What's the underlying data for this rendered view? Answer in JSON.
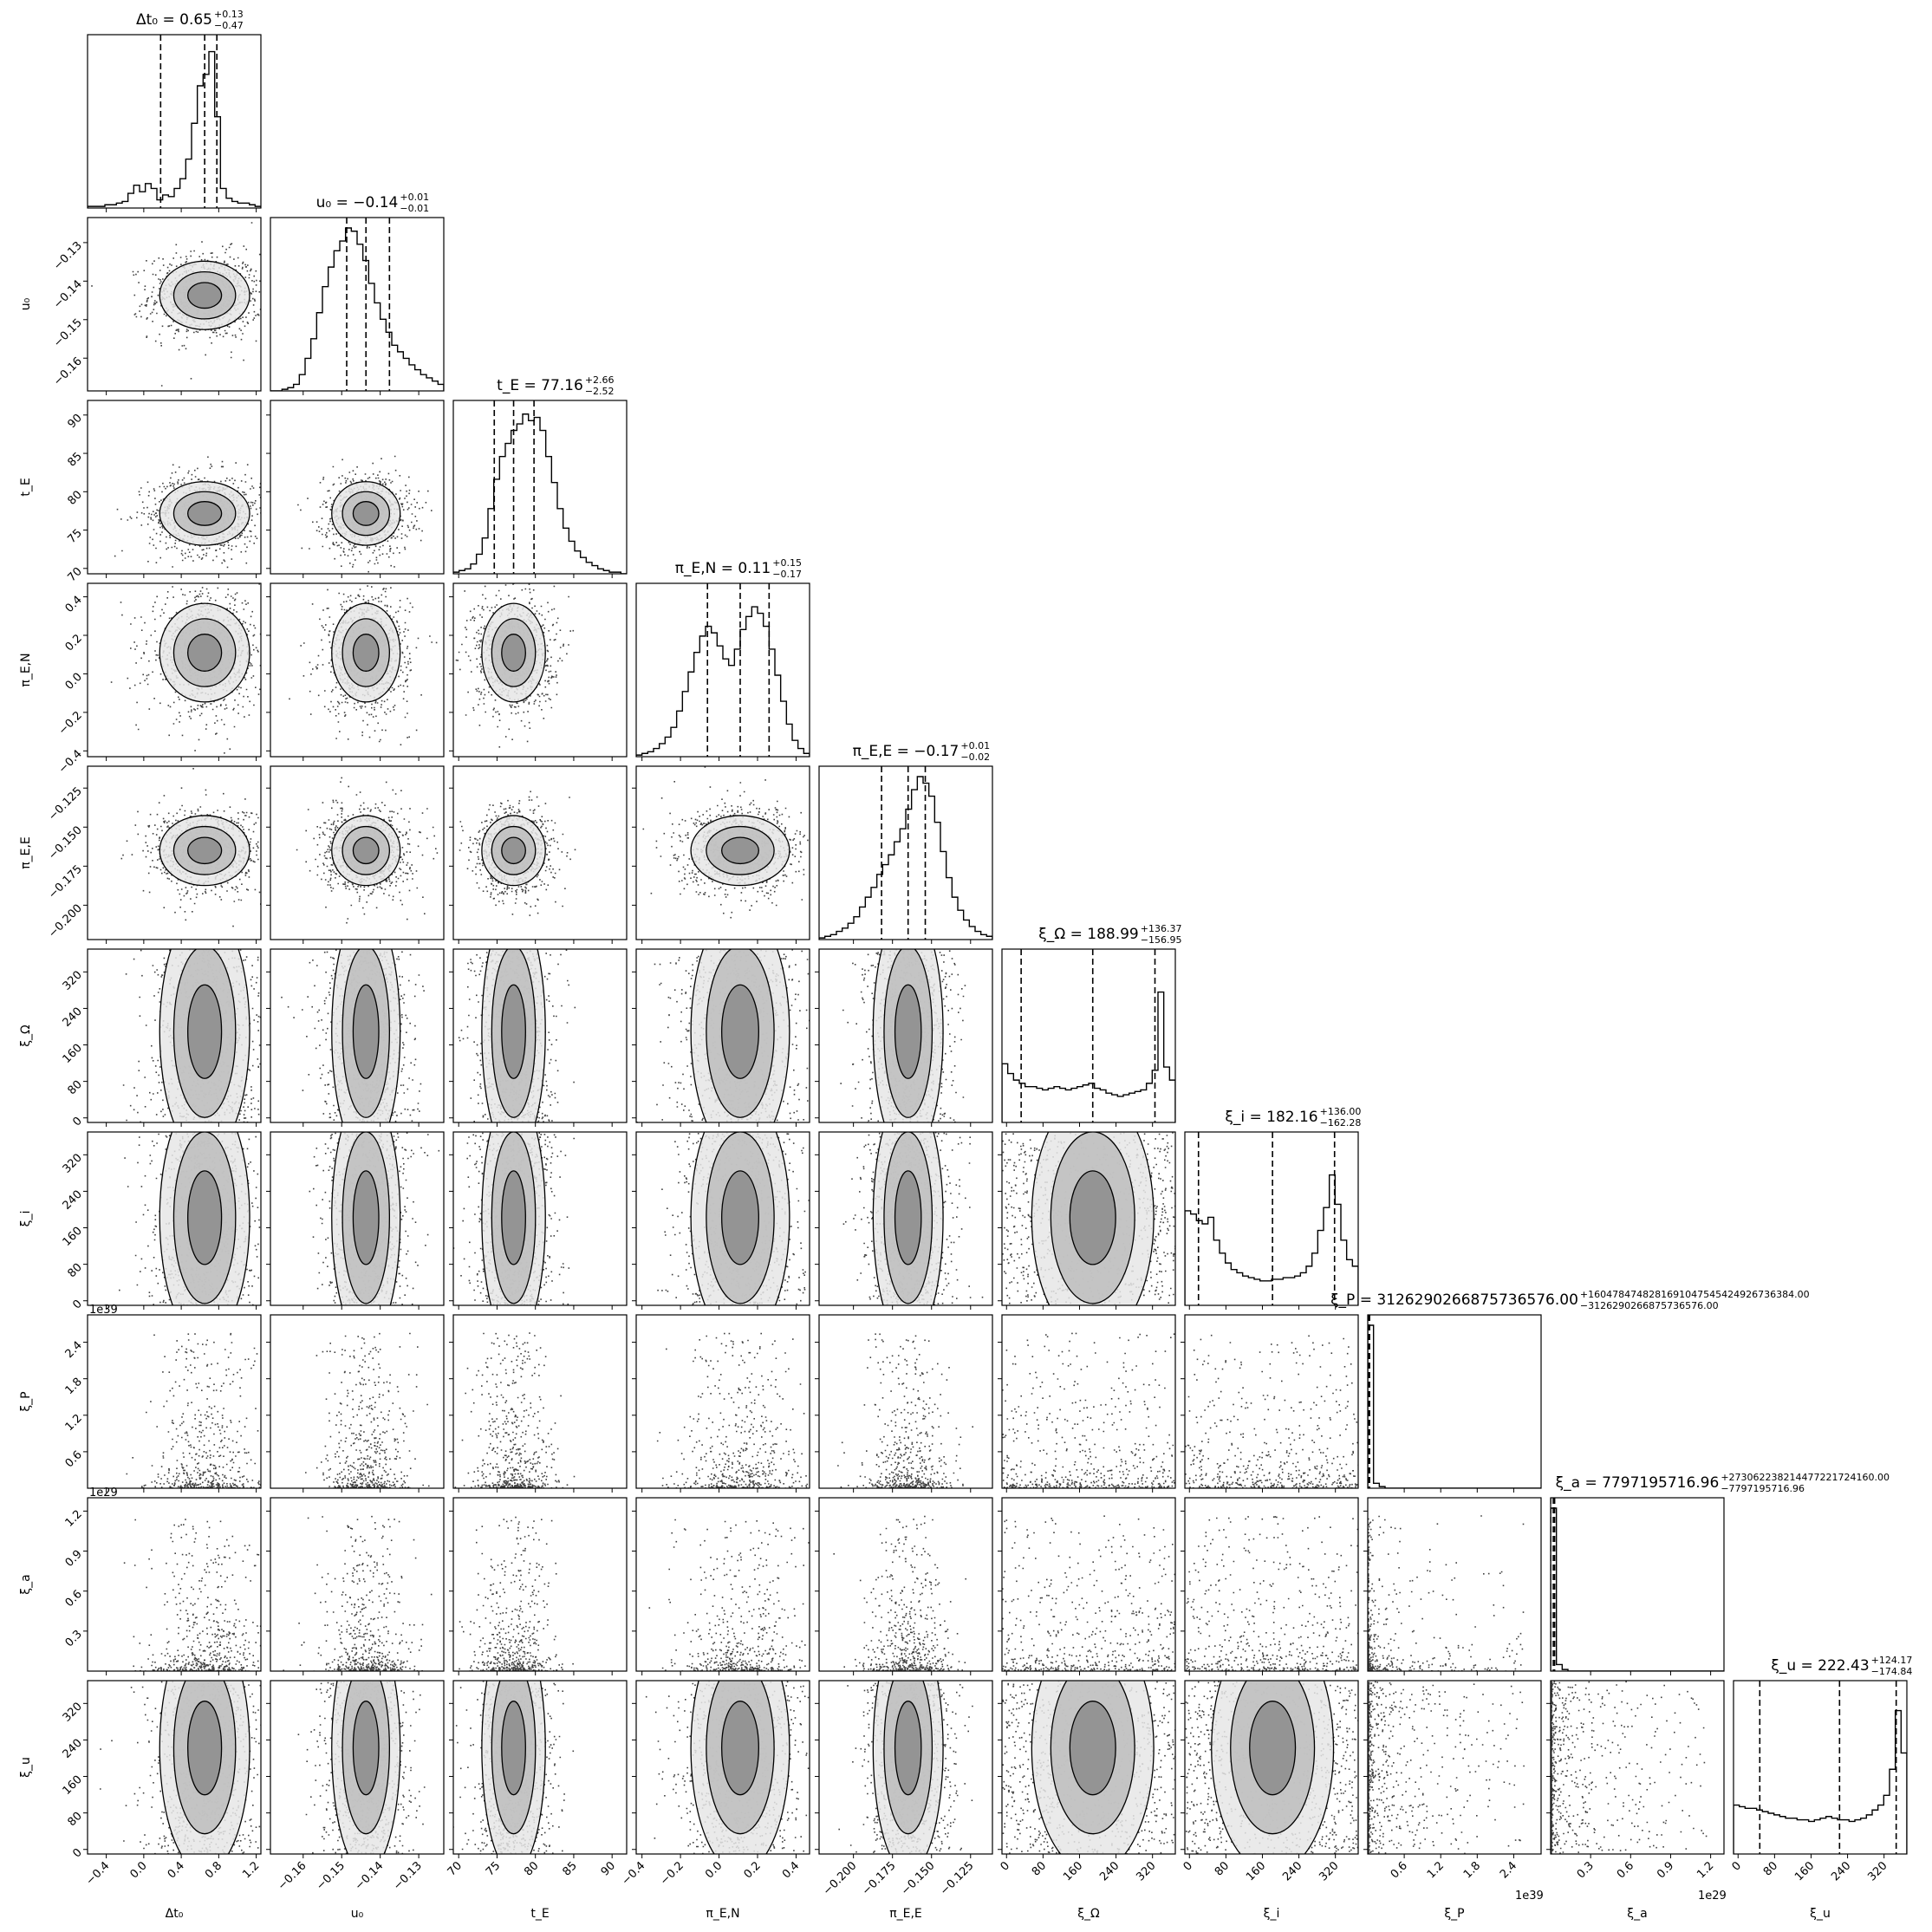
{
  "chart_data": {
    "type": "corner",
    "params": [
      {
        "label": "Δt₀",
        "ticks": [
          "−0.4",
          "0.0",
          "0.4",
          "0.8",
          "1.2"
        ],
        "tickvals": [
          -0.4,
          0.0,
          0.4,
          0.8,
          1.2
        ],
        "range": [
          -0.6,
          1.25
        ],
        "title": "Δt₀ = 0.65",
        "sup": "+0.13",
        "sub": "−0.47",
        "median": 0.65,
        "q16": 0.18,
        "q84": 0.78
      },
      {
        "label": "u₀",
        "ticks": [
          "−0.16",
          "−0.15",
          "−0.14",
          "−0.13"
        ],
        "tickvals": [
          -0.16,
          -0.15,
          -0.14,
          -0.13
        ],
        "range": [
          -0.1685,
          -0.1235
        ],
        "title": "u₀ = −0.14",
        "sup": "+0.01",
        "sub": "−0.01",
        "median": -0.1437,
        "q16": -0.1487,
        "q84": -0.1376
      },
      {
        "label": "t_E",
        "ticks": [
          "70",
          "75",
          "80",
          "85",
          "90"
        ],
        "tickvals": [
          70,
          75,
          80,
          85,
          90
        ],
        "range": [
          69.3,
          91.9
        ],
        "title": "t_E = 77.16",
        "sup": "+2.66",
        "sub": "−2.52",
        "median": 77.16,
        "q16": 74.64,
        "q84": 79.82
      },
      {
        "label": "π_E,N",
        "ticks": [
          "−0.4",
          "−0.2",
          "0.0",
          "0.2",
          "0.4"
        ],
        "tickvals": [
          -0.4,
          -0.2,
          0.0,
          0.2,
          0.4
        ],
        "range": [
          -0.43,
          0.47
        ],
        "title": "π_E,N = 0.11",
        "sup": "+0.15",
        "sub": "−0.17",
        "median": 0.11,
        "q16": -0.06,
        "q84": 0.26
      },
      {
        "label": "π_E,E",
        "ticks": [
          "−0.200",
          "−0.175",
          "−0.150",
          "−0.125"
        ],
        "tickvals": [
          -0.2,
          -0.175,
          -0.15,
          -0.125
        ],
        "range": [
          -0.222,
          -0.111
        ],
        "title": "π_E,E = −0.17",
        "sup": "+0.01",
        "sub": "−0.02",
        "median": -0.165,
        "q16": -0.182,
        "q84": -0.154
      },
      {
        "label": "ξ_Ω",
        "ticks": [
          "0",
          "80",
          "160",
          "240",
          "320"
        ],
        "tickvals": [
          0,
          80,
          160,
          240,
          320
        ],
        "range": [
          -10,
          370
        ],
        "title": "ξ_Ω = 188.99",
        "sup": "+136.37",
        "sub": "−156.95",
        "median": 188.99,
        "q16": 32.04,
        "q84": 325.36
      },
      {
        "label": "ξ_i",
        "ticks": [
          "0",
          "80",
          "160",
          "240",
          "320"
        ],
        "tickvals": [
          0,
          80,
          160,
          240,
          320
        ],
        "range": [
          -10,
          370
        ],
        "title": "ξ_i = 182.16",
        "sup": "+136.00",
        "sub": "−162.28",
        "median": 182.16,
        "q16": 19.88,
        "q84": 318.16
      },
      {
        "label": "ξ_P",
        "ticks": [
          "0.6",
          "1.2",
          "1.8",
          "2.4"
        ],
        "tickvals": [
          0.6,
          1.2,
          1.8,
          2.4
        ],
        "range": [
          0,
          2.85
        ],
        "offset": "1e39",
        "title": "ξ_P = 3126290266875736576.00",
        "sup": "+160478474828169104754542492673​6384.00",
        "sub": "−3126290266875736576.00",
        "median": 0.02,
        "q16": 0.0,
        "q84": 0.03
      },
      {
        "label": "ξ_a",
        "ticks": [
          "0.3",
          "0.6",
          "0.9",
          "1.2"
        ],
        "tickvals": [
          0.3,
          0.6,
          0.9,
          1.2
        ],
        "range": [
          0,
          1.3
        ],
        "offset": "1e29",
        "title": "ξ_a = 7797195716.96",
        "sup": "+27306223821447722172416​0.00",
        "sub": "−7797195716.96",
        "median": 0.02,
        "q16": 0.0,
        "q84": 0.03
      },
      {
        "label": "ξ_u",
        "ticks": [
          "0",
          "80",
          "160",
          "240",
          "320"
        ],
        "tickvals": [
          0,
          80,
          160,
          240,
          320
        ],
        "range": [
          -10,
          370
        ],
        "title": "ξ_u = 222.43",
        "sup": "+124.17",
        "sub": "−174.84",
        "median": 222.43,
        "q16": 47.59,
        "q84": 346.6
      }
    ],
    "histograms": [
      [
        1,
        1,
        1,
        2,
        2,
        3,
        4,
        9,
        14,
        10,
        15,
        12,
        5,
        8,
        7,
        12,
        18,
        30,
        52,
        75,
        82,
        96,
        56,
        12,
        6,
        4,
        3,
        3,
        2,
        1
      ],
      [
        0,
        0,
        1,
        2,
        4,
        10,
        20,
        32,
        48,
        64,
        76,
        86,
        92,
        100,
        98,
        90,
        80,
        66,
        54,
        44,
        36,
        28,
        24,
        20,
        16,
        13,
        10,
        8,
        6,
        4
      ],
      [
        1,
        2,
        3,
        6,
        12,
        22,
        40,
        58,
        72,
        80,
        88,
        92,
        98,
        94,
        96,
        88,
        72,
        56,
        40,
        28,
        20,
        14,
        10,
        7,
        5,
        3,
        2,
        1,
        1,
        0
      ],
      [
        1,
        2,
        3,
        5,
        8,
        12,
        18,
        28,
        40,
        52,
        64,
        74,
        80,
        76,
        68,
        60,
        56,
        66,
        78,
        86,
        92,
        88,
        80,
        66,
        50,
        34,
        20,
        10,
        5,
        2
      ],
      [
        1,
        2,
        3,
        5,
        7,
        10,
        14,
        20,
        26,
        32,
        40,
        46,
        52,
        60,
        68,
        80,
        92,
        100,
        96,
        88,
        72,
        54,
        38,
        26,
        18,
        12,
        8,
        5,
        3,
        2
      ],
      [
        36,
        30,
        26,
        24,
        22,
        22,
        21,
        20,
        21,
        22,
        21,
        20,
        21,
        22,
        23,
        24,
        21,
        20,
        18,
        17,
        16,
        17,
        18,
        19,
        20,
        24,
        32,
        80,
        34,
        26
      ],
      [
        58,
        56,
        52,
        50,
        54,
        40,
        32,
        26,
        22,
        20,
        18,
        17,
        16,
        15,
        15,
        16,
        16,
        17,
        17,
        18,
        20,
        24,
        32,
        46,
        60,
        80,
        62,
        40,
        28,
        24
      ],
      [
        100,
        3,
        1,
        0,
        0,
        0,
        0,
        0,
        0,
        0,
        0,
        0,
        0,
        0,
        0,
        0,
        0,
        0,
        0,
        0,
        0,
        0,
        0,
        0,
        0,
        0,
        0,
        0,
        0,
        0
      ],
      [
        100,
        4,
        1,
        0,
        0,
        0,
        0,
        0,
        0,
        0,
        0,
        0,
        0,
        0,
        0,
        0,
        0,
        0,
        0,
        0,
        0,
        0,
        0,
        0,
        0,
        0,
        0,
        0,
        0,
        0
      ],
      [
        30,
        29,
        28,
        28,
        27,
        26,
        25,
        24,
        23,
        22,
        22,
        21,
        21,
        20,
        21,
        22,
        23,
        22,
        21,
        21,
        20,
        21,
        22,
        24,
        27,
        30,
        36,
        52,
        88,
        62
      ]
    ]
  }
}
